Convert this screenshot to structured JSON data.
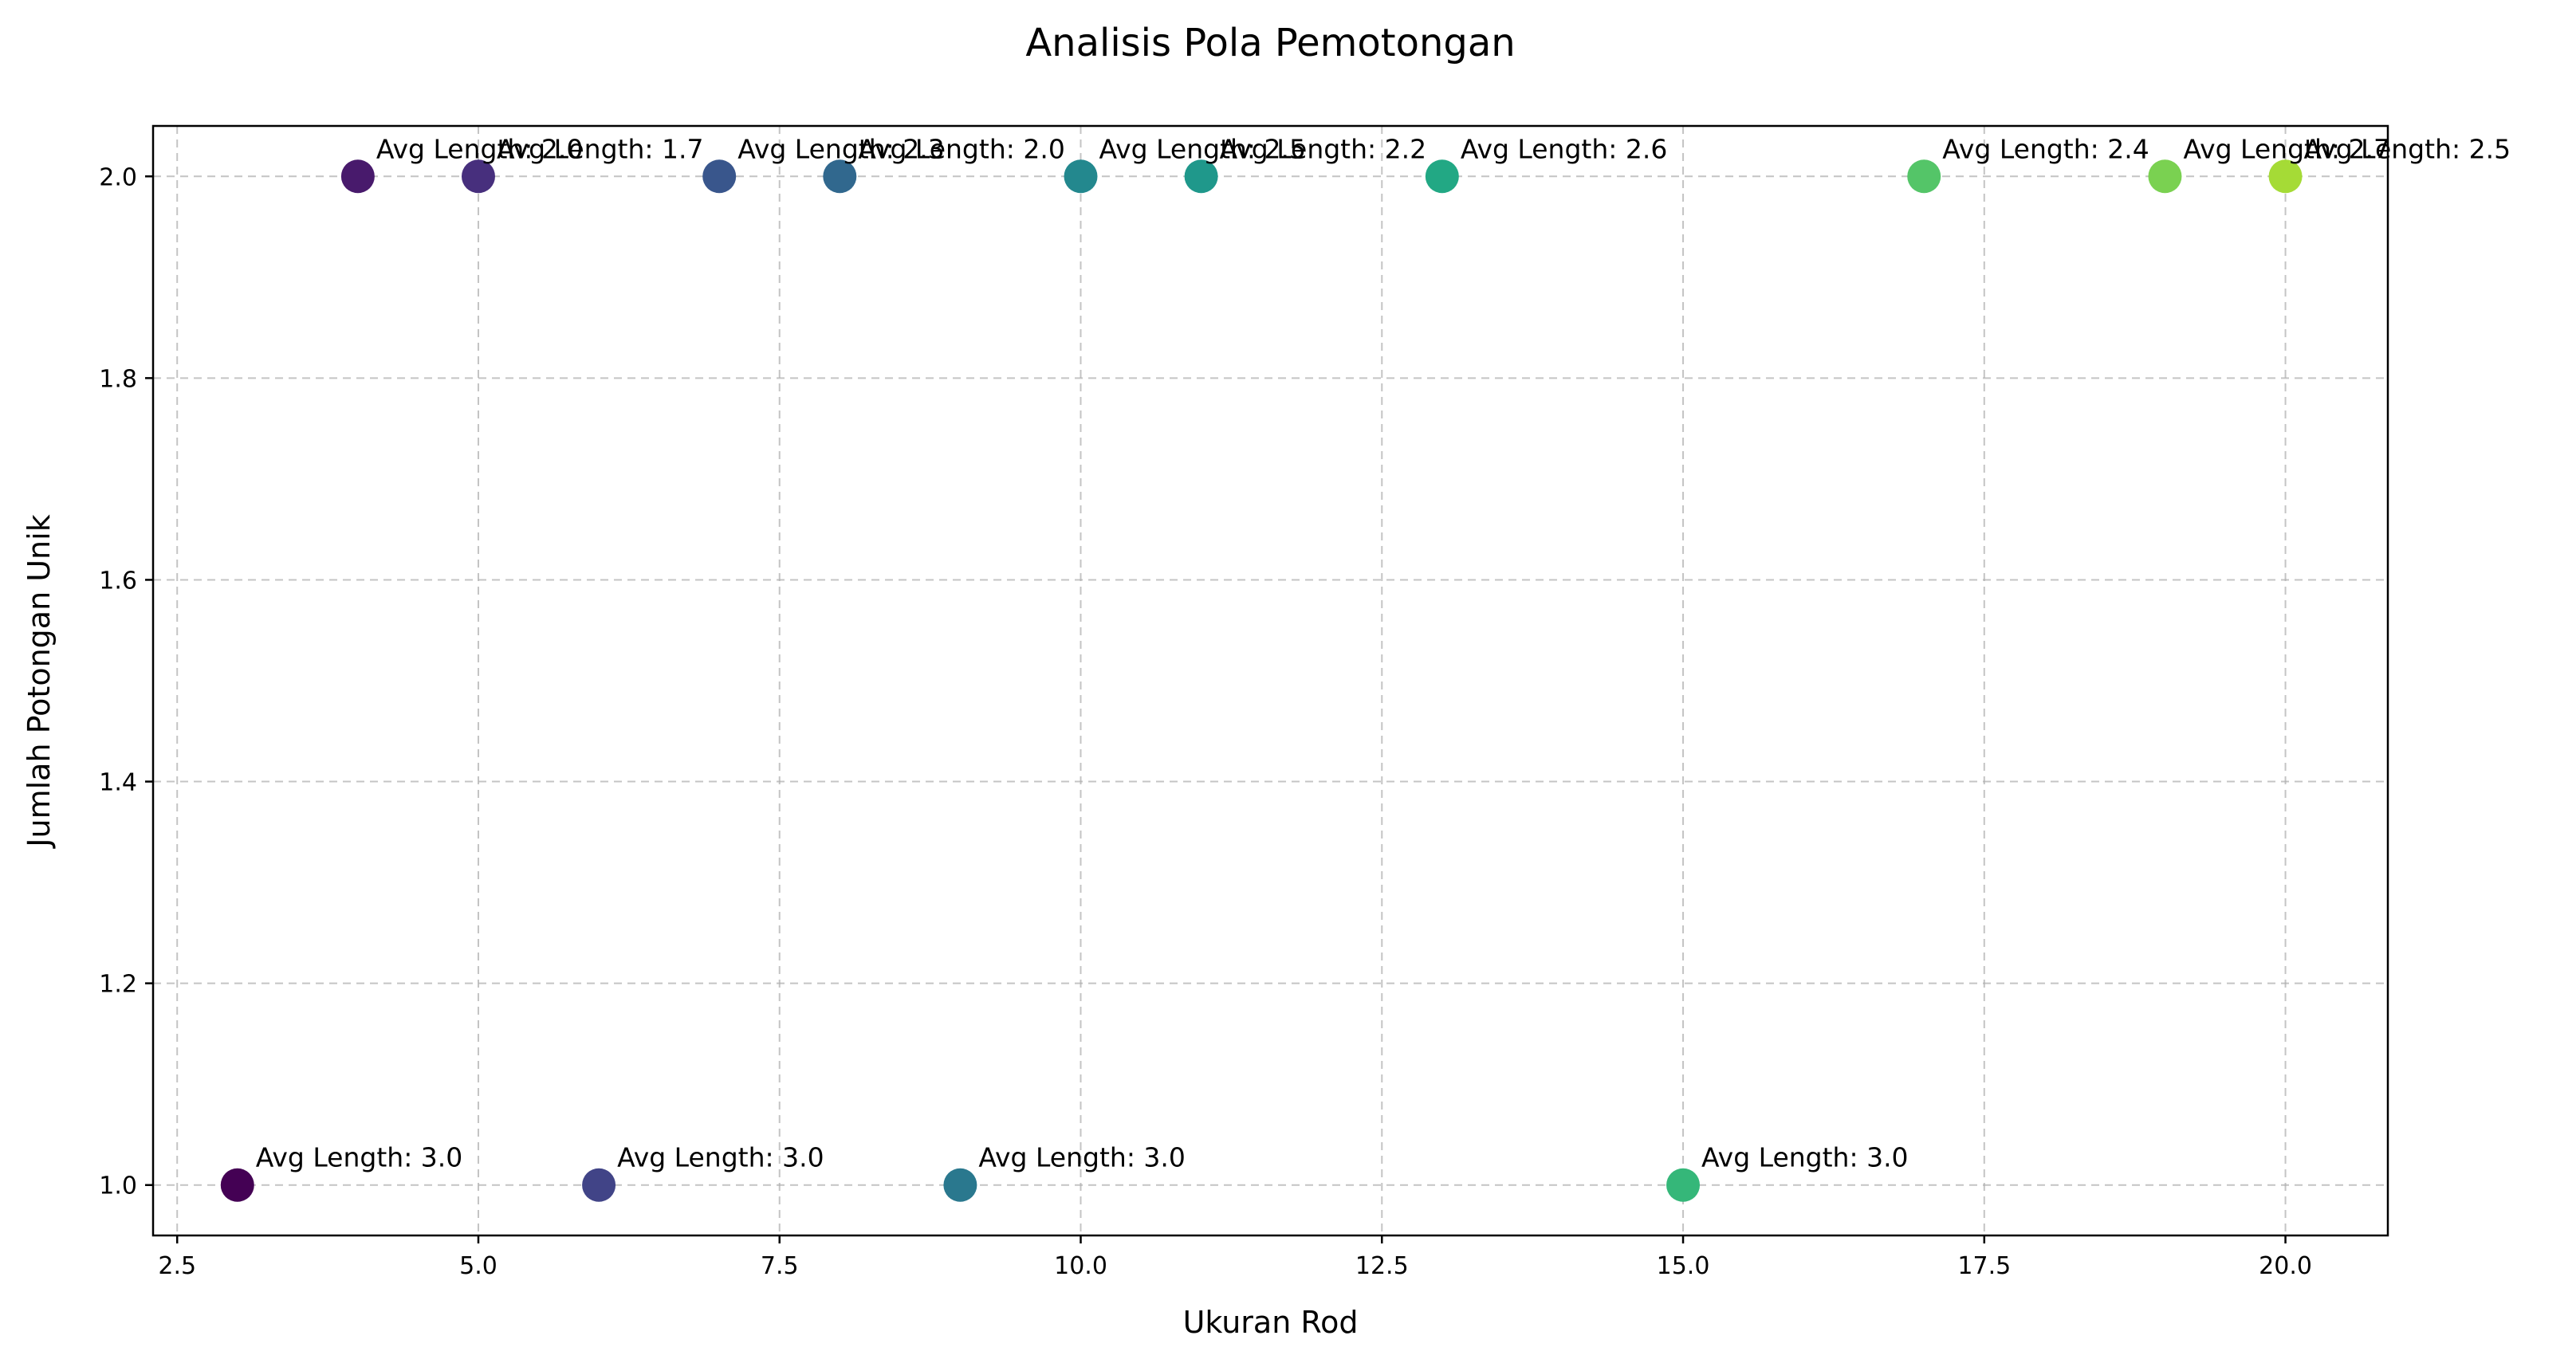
{
  "chart_data": {
    "type": "scatter",
    "title": "Analisis Pola Pemotongan",
    "xlabel": "Ukuran Rod",
    "ylabel": "Jumlah Potongan Unik",
    "xlim": [
      2.3,
      20.85
    ],
    "ylim": [
      0.95,
      2.05
    ],
    "x_ticks": [
      2.5,
      5.0,
      7.5,
      10.0,
      12.5,
      15.0,
      17.5,
      20.0
    ],
    "x_tick_labels": [
      "2.5",
      "5.0",
      "7.5",
      "10.0",
      "12.5",
      "15.0",
      "17.5",
      "20.0"
    ],
    "y_ticks": [
      1.0,
      1.2,
      1.4,
      1.6,
      1.8,
      2.0
    ],
    "y_tick_labels": [
      "1.0",
      "1.2",
      "1.4",
      "1.6",
      "1.8",
      "2.0"
    ],
    "grid": true,
    "colormap": "viridis",
    "points": [
      {
        "x": 3,
        "y": 1,
        "label": "Avg Length: 3.0",
        "color": "#440154"
      },
      {
        "x": 4,
        "y": 2,
        "label": "Avg Length: 2.0",
        "color": "#481a6c"
      },
      {
        "x": 5,
        "y": 2,
        "label": "Avg Length: 1.7",
        "color": "#472f7d"
      },
      {
        "x": 6,
        "y": 1,
        "label": "Avg Length: 3.0",
        "color": "#414487"
      },
      {
        "x": 7,
        "y": 2,
        "label": "Avg Length: 2.3",
        "color": "#39568c"
      },
      {
        "x": 8,
        "y": 2,
        "label": "Avg Length: 2.0",
        "color": "#31688e"
      },
      {
        "x": 9,
        "y": 1,
        "label": "Avg Length: 3.0",
        "color": "#2a788e"
      },
      {
        "x": 10,
        "y": 2,
        "label": "Avg Length: 2.5",
        "color": "#23888e"
      },
      {
        "x": 11,
        "y": 2,
        "label": "Avg Length: 2.2",
        "color": "#1f988b"
      },
      {
        "x": 13,
        "y": 2,
        "label": "Avg Length: 2.6",
        "color": "#22a884"
      },
      {
        "x": 15,
        "y": 1,
        "label": "Avg Length: 3.0",
        "color": "#35b779"
      },
      {
        "x": 17,
        "y": 2,
        "label": "Avg Length: 2.4",
        "color": "#54c568"
      },
      {
        "x": 19,
        "y": 2,
        "label": "Avg Length: 2.7",
        "color": "#7ad151"
      },
      {
        "x": 20,
        "y": 2,
        "label": "Avg Length: 2.5",
        "color": "#a5db36"
      }
    ]
  }
}
